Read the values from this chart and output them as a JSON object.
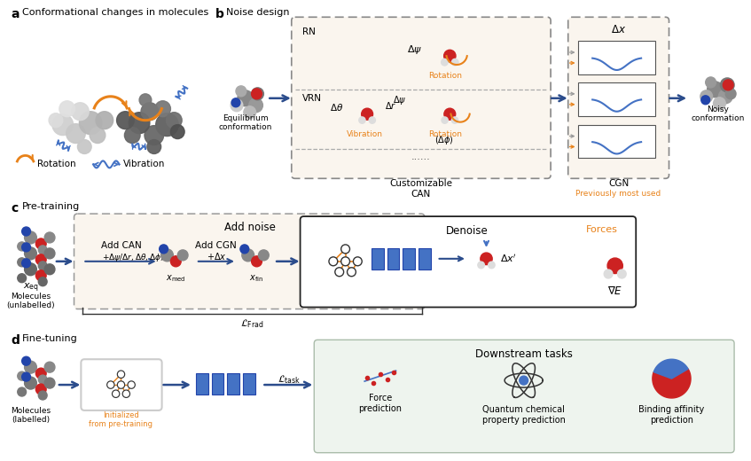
{
  "bg_color": "#ffffff",
  "panel_a_title": "Conformational changes in molecules",
  "panel_b_title": "Noise design",
  "panel_c_title": "Pre-training",
  "panel_d_title": "Fine-tuning",
  "orange": "#E8821A",
  "blue_dark": "#2B4C8C",
  "blue_line": "#4472C4",
  "light_tan": "#FAF5EE",
  "light_green": "#EEF4EE",
  "gray_border": "#999999"
}
